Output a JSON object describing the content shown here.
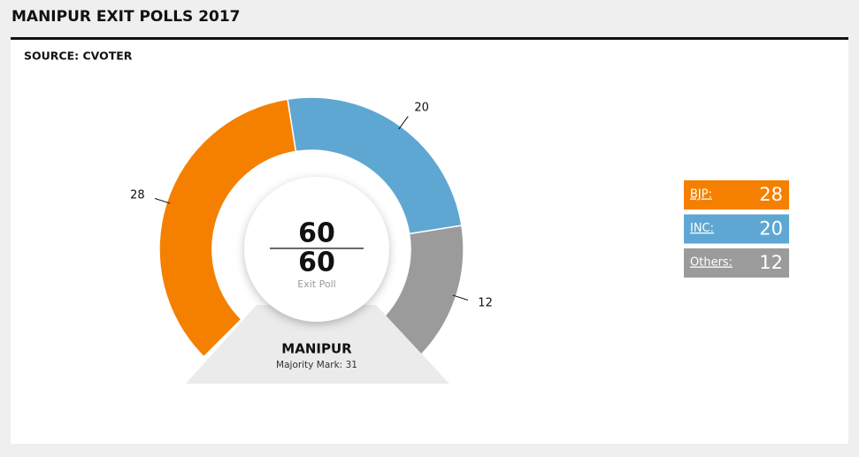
{
  "chart_data": {
    "type": "gauge",
    "title": "MANIPUR EXIT POLLS 2017",
    "subtitle": "SOURCE: CVOTER",
    "counted": 60,
    "total": 60,
    "center_label": "Exit Poll",
    "region": "MANIPUR",
    "majority_label": "Majority Mark:",
    "majority_mark": 31,
    "series": [
      {
        "name": "BJP:",
        "color": "#f58000",
        "value": 28
      },
      {
        "name": "INC:",
        "color": "#5ea7d3",
        "value": 20
      },
      {
        "name": "Others:",
        "color": "#9b9b9b",
        "value": 12
      }
    ]
  }
}
